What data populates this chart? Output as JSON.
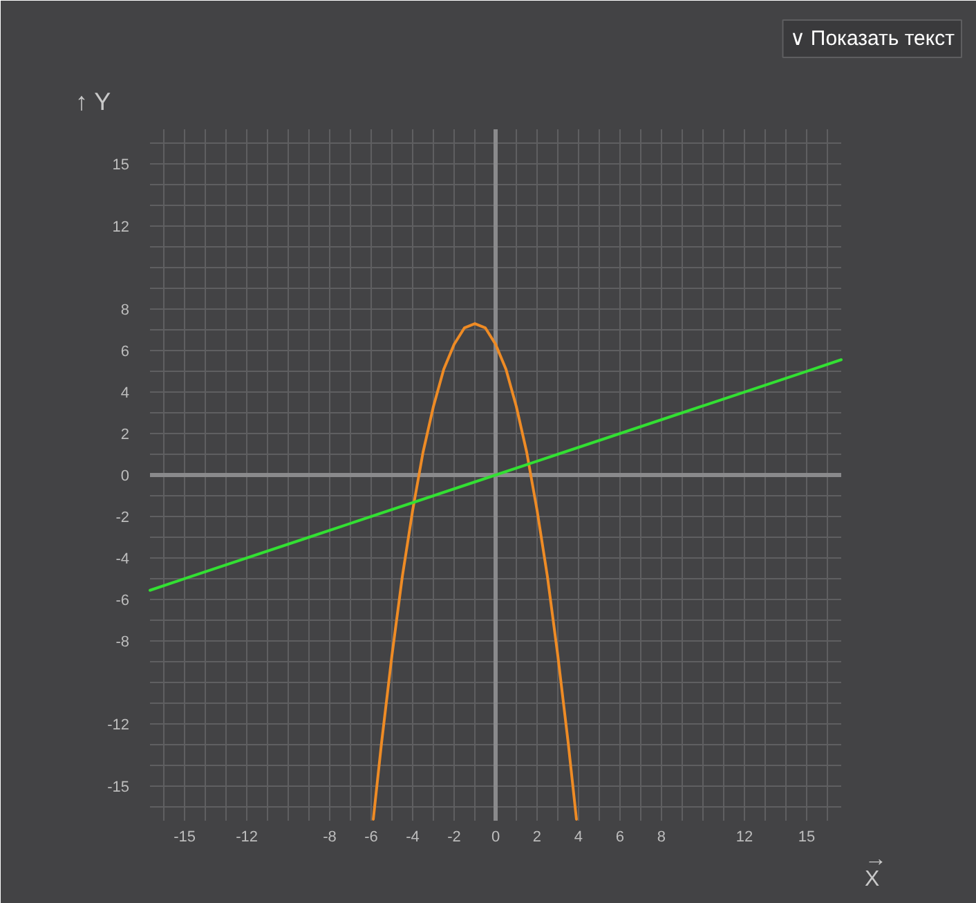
{
  "chart_data": {
    "type": "line",
    "xlabel": "→\nX",
    "ylabel": "↑ Y",
    "annotations": [
      "∨ Показать текст"
    ],
    "xlim": [
      -16.67,
      16.67
    ],
    "ylim": [
      -16.67,
      16.67
    ],
    "xticks": [
      {
        "value": -16,
        "label": null
      },
      -15,
      {
        "value": -14,
        "label": null
      },
      {
        "value": -13,
        "label": null
      },
      -12,
      {
        "value": -11,
        "label": null
      },
      {
        "value": -10,
        "label": null
      },
      {
        "value": -9,
        "label": null
      },
      -8,
      {
        "value": -7,
        "label": null
      },
      -6,
      {
        "value": -5,
        "label": null
      },
      -4,
      {
        "value": -3,
        "label": null
      },
      -2,
      {
        "value": -1,
        "label": null
      },
      0,
      {
        "value": 1,
        "label": null
      },
      2,
      {
        "value": 3,
        "label": null
      },
      4,
      {
        "value": 5,
        "label": null
      },
      6,
      {
        "value": 7,
        "label": null
      },
      8,
      {
        "value": 9,
        "label": null
      },
      {
        "value": 10,
        "label": null
      },
      {
        "value": 11,
        "label": null
      },
      12,
      {
        "value": 13,
        "label": null
      },
      {
        "value": 14,
        "label": null
      },
      15,
      {
        "value": 16,
        "label": null
      }
    ],
    "yticks": [
      {
        "value": -16,
        "label": null
      },
      -15,
      {
        "value": -14,
        "label": null
      },
      {
        "value": -13,
        "label": null
      },
      -12,
      {
        "value": -11,
        "label": null
      },
      {
        "value": -10,
        "label": null
      },
      {
        "value": -9,
        "label": null
      },
      -8,
      {
        "value": -7,
        "label": null
      },
      -6,
      {
        "value": -5,
        "label": null
      },
      -4,
      {
        "value": -3,
        "label": null
      },
      -2,
      {
        "value": -1,
        "label": null
      },
      0,
      {
        "value": 1,
        "label": null
      },
      2,
      {
        "value": 3,
        "label": null
      },
      4,
      {
        "value": 5,
        "label": null
      },
      6,
      {
        "value": 7,
        "label": null
      },
      8,
      {
        "value": 9,
        "label": null
      },
      {
        "value": 10,
        "label": null
      },
      {
        "value": 11,
        "label": null
      },
      12,
      {
        "value": 13,
        "label": null
      },
      {
        "value": 14,
        "label": null
      },
      15,
      {
        "value": 16,
        "label": null
      }
    ],
    "grid": true,
    "line_style": "solid",
    "series": [
      {
        "color": "#ee8b25",
        "x": [
          -5.9,
          -5.5,
          -5.0,
          -4.5,
          -4.0,
          -3.5,
          -3.0,
          -2.5,
          -2.0,
          -1.75,
          -1.5,
          -1.25,
          -1.0,
          -0.75,
          -0.5,
          -0.25,
          0,
          0.5,
          1.0,
          1.5,
          2.0,
          2.5,
          3.0,
          3.5,
          3.9
        ],
        "values": [
          -16.6,
          -12.9,
          -8.7,
          -4.9,
          -1.7,
          1.1,
          3.3,
          5.1,
          6.3,
          6.7,
          7.1,
          7.2,
          7.3,
          7.2,
          7.1,
          6.7,
          6.3,
          5.1,
          3.3,
          1.1,
          -1.7,
          -4.9,
          -8.7,
          -12.9,
          -16.6
        ]
      },
      {
        "color": "#33e033",
        "x": [
          -16.67,
          -15,
          -9,
          -3,
          0,
          3,
          9,
          15,
          16.67
        ],
        "values": [
          -5.56,
          -5,
          -3,
          -1,
          0,
          1,
          3,
          5,
          5.56
        ]
      }
    ]
  }
}
